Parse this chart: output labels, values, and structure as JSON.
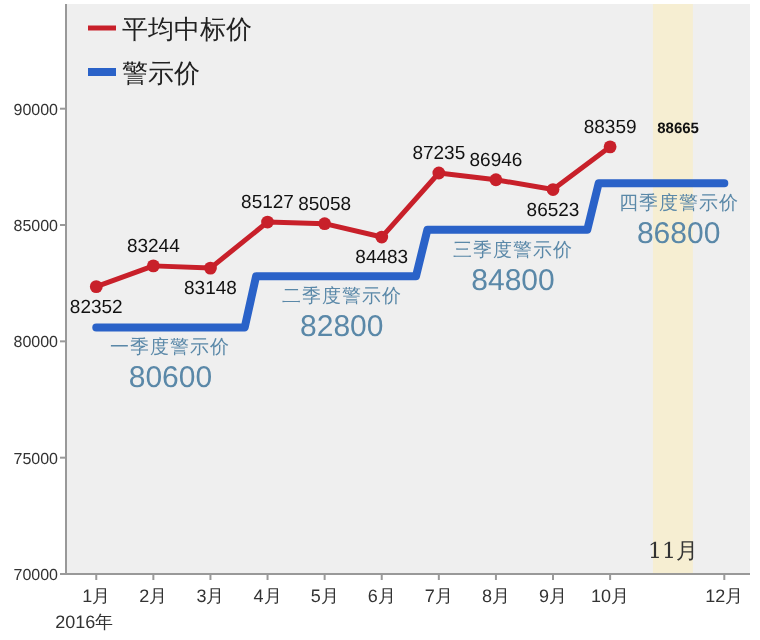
{
  "chart_data": {
    "type": "line",
    "xlim": [
      0.47,
      12.45
    ],
    "ylim": [
      70000,
      94500
    ],
    "xticks": [
      {
        "value": 1,
        "label": "1月"
      },
      {
        "value": 2,
        "label": "2月"
      },
      {
        "value": 3,
        "label": "3月"
      },
      {
        "value": 4,
        "label": "4月"
      },
      {
        "value": 5,
        "label": "5月"
      },
      {
        "value": 6,
        "label": "6月"
      },
      {
        "value": 7,
        "label": "7月"
      },
      {
        "value": 8,
        "label": "8月"
      },
      {
        "value": 9,
        "label": "9月"
      },
      {
        "value": 10,
        "label": "10月"
      },
      {
        "value": 12,
        "label": "12月"
      }
    ],
    "yticks": [
      70000,
      75000,
      80000,
      85000,
      90000
    ],
    "legend": "top left",
    "line_style": "solid",
    "grid": false,
    "series": [
      {
        "name": "平均中标价",
        "color": "#c8202a",
        "marker": "circle",
        "x": [
          1,
          2,
          3,
          4,
          5,
          6,
          7,
          8,
          9,
          10
        ],
        "values": [
          82352,
          83244,
          83148,
          85127,
          85058,
          84483,
          87235,
          86946,
          86523,
          88359
        ],
        "value_labels": [
          "82352",
          "83244",
          "83148",
          "85127",
          "85058",
          "84483",
          "87235",
          "86946",
          "86523",
          "88359"
        ]
      },
      {
        "name": "警示价",
        "color": "#2a62c8",
        "marker": "none",
        "x": [
          1,
          3.6,
          3.8,
          6.6,
          6.8,
          9.6,
          9.8,
          12
        ],
        "values": [
          80600,
          80600,
          82800,
          82800,
          84800,
          84800,
          86800,
          86800
        ]
      }
    ],
    "bands": [
      {
        "axis": "x",
        "from": 10.75,
        "to": 11.45,
        "label": "11月",
        "color": "#f6eed2"
      }
    ],
    "annotations": [
      "2016年",
      "88665",
      {
        "text": "一季度警示价",
        "x": 2.3,
        "y": 80600
      },
      {
        "text": "80600",
        "x": 2.3,
        "y": 80600
      },
      {
        "text": "二季度警示价",
        "x": 5.3,
        "y": 82800
      },
      {
        "text": "82800",
        "x": 5.3,
        "y": 82800
      },
      {
        "text": "三季度警示价",
        "x": 8.3,
        "y": 84800
      },
      {
        "text": "84800",
        "x": 8.3,
        "y": 84800
      },
      {
        "text": "四季度警示价",
        "x": 11.2,
        "y": 86800
      },
      {
        "text": "86800",
        "x": 11.2,
        "y": 86800
      }
    ]
  }
}
